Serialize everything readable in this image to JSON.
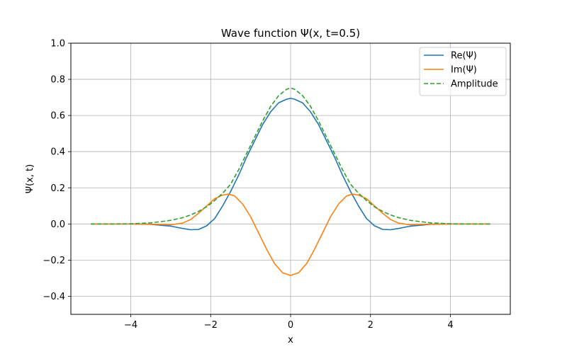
{
  "chart_data": {
    "type": "line",
    "title": "Wave function Ψ(x, t=0.5)",
    "xlabel": "x",
    "ylabel": "Ψ(x, t)",
    "xlim": [
      -5.5,
      5.5
    ],
    "ylim": [
      -0.5,
      1.0
    ],
    "xticks": [
      -4,
      -2,
      0,
      2,
      4
    ],
    "yticks": [
      -0.4,
      -0.2,
      0.0,
      0.2,
      0.4,
      0.6,
      0.8,
      1.0
    ],
    "xtick_labels": [
      "−4",
      "−2",
      "0",
      "2",
      "4"
    ],
    "ytick_labels": [
      "−0.4",
      "−0.2",
      "0.0",
      "0.2",
      "0.4",
      "0.6",
      "0.8",
      "1.0"
    ],
    "grid": true,
    "legend_position": "top-right",
    "series": [
      {
        "name": "Re(Ψ)",
        "color": "#1f77b4",
        "style": "solid",
        "x": [
          -5.0,
          -4.5,
          -4.0,
          -3.5,
          -3.0,
          -2.7,
          -2.5,
          -2.3,
          -2.1,
          -1.9,
          -1.7,
          -1.5,
          -1.3,
          -1.1,
          -0.9,
          -0.7,
          -0.5,
          -0.3,
          -0.1,
          0.0,
          0.1,
          0.3,
          0.5,
          0.7,
          0.9,
          1.1,
          1.3,
          1.5,
          1.7,
          1.9,
          2.1,
          2.3,
          2.5,
          2.7,
          3.0,
          3.5,
          4.0,
          4.5,
          5.0
        ],
        "y": [
          0.0,
          0.0,
          0.0,
          -0.002,
          -0.012,
          -0.025,
          -0.032,
          -0.03,
          -0.01,
          0.03,
          0.1,
          0.18,
          0.27,
          0.37,
          0.46,
          0.55,
          0.62,
          0.67,
          0.69,
          0.695,
          0.69,
          0.67,
          0.62,
          0.55,
          0.46,
          0.37,
          0.27,
          0.18,
          0.1,
          0.03,
          -0.01,
          -0.03,
          -0.032,
          -0.025,
          -0.012,
          -0.002,
          0.0,
          0.0,
          0.0
        ]
      },
      {
        "name": "Im(Ψ)",
        "color": "#ff7f0e",
        "style": "solid",
        "x": [
          -5.0,
          -4.5,
          -4.0,
          -3.5,
          -3.0,
          -2.7,
          -2.5,
          -2.3,
          -2.1,
          -1.9,
          -1.7,
          -1.55,
          -1.4,
          -1.2,
          -1.0,
          -0.8,
          -0.6,
          -0.4,
          -0.2,
          0.0,
          0.2,
          0.4,
          0.6,
          0.8,
          1.0,
          1.2,
          1.4,
          1.55,
          1.7,
          1.9,
          2.1,
          2.3,
          2.5,
          2.7,
          3.0,
          3.5,
          4.0,
          4.5,
          5.0
        ],
        "y": [
          0.0,
          0.0,
          0.0,
          -0.001,
          -0.005,
          0.005,
          0.025,
          0.06,
          0.1,
          0.14,
          0.16,
          0.165,
          0.155,
          0.11,
          0.04,
          -0.05,
          -0.14,
          -0.22,
          -0.27,
          -0.285,
          -0.27,
          -0.22,
          -0.14,
          -0.05,
          0.04,
          0.11,
          0.155,
          0.165,
          0.16,
          0.14,
          0.1,
          0.06,
          0.025,
          0.005,
          -0.005,
          -0.001,
          0.0,
          0.0,
          0.0
        ]
      },
      {
        "name": "Amplitude",
        "color": "#2ca02c",
        "style": "dashed",
        "x": [
          -5.0,
          -4.5,
          -4.0,
          -3.5,
          -3.0,
          -2.7,
          -2.5,
          -2.3,
          -2.1,
          -1.9,
          -1.7,
          -1.5,
          -1.3,
          -1.1,
          -0.9,
          -0.7,
          -0.5,
          -0.3,
          -0.1,
          0.0,
          0.1,
          0.3,
          0.5,
          0.7,
          0.9,
          1.1,
          1.3,
          1.5,
          1.7,
          1.9,
          2.1,
          2.3,
          2.5,
          2.7,
          3.0,
          3.5,
          4.0,
          4.5,
          5.0
        ],
        "y": [
          0.0,
          0.0,
          0.001,
          0.006,
          0.02,
          0.035,
          0.05,
          0.07,
          0.095,
          0.13,
          0.17,
          0.22,
          0.3,
          0.39,
          0.48,
          0.57,
          0.65,
          0.71,
          0.745,
          0.752,
          0.745,
          0.71,
          0.65,
          0.57,
          0.48,
          0.39,
          0.3,
          0.22,
          0.17,
          0.13,
          0.095,
          0.07,
          0.05,
          0.035,
          0.02,
          0.006,
          0.001,
          0.0,
          0.0
        ]
      }
    ]
  }
}
